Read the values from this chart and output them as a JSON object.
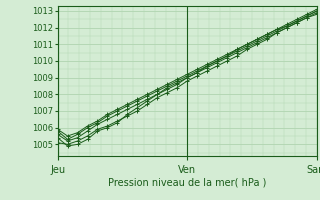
{
  "bg_color": "#d4ecd4",
  "plot_bg_color": "#d4ecd4",
  "grid_color": "#b0d4b0",
  "line_color": "#1a5c1a",
  "marker_color": "#1a5c1a",
  "xlabel": "Pression niveau de la mer( hPa )",
  "yticks": [
    1005,
    1006,
    1007,
    1008,
    1009,
    1010,
    1011,
    1012,
    1013
  ],
  "ylim": [
    1004.3,
    1013.3
  ],
  "xlim": [
    0,
    48
  ],
  "xtick_positions": [
    0,
    24,
    48
  ],
  "xtick_labels": [
    "Jeu",
    "Ven",
    "Sam"
  ],
  "series": [
    [
      1005.1,
      1005.0,
      1005.2,
      1005.5,
      1005.9,
      1006.1,
      1006.4,
      1006.7,
      1007.0,
      1007.4,
      1007.8,
      1008.1,
      1008.4,
      1008.8,
      1009.1,
      1009.4,
      1009.7,
      1010.0,
      1010.3,
      1010.7,
      1011.0,
      1011.3,
      1011.7,
      1012.0,
      1012.3,
      1012.6,
      1012.8
    ],
    [
      1005.6,
      1005.2,
      1005.4,
      1005.8,
      1006.2,
      1006.5,
      1006.8,
      1007.1,
      1007.4,
      1007.7,
      1008.0,
      1008.3,
      1008.6,
      1009.0,
      1009.3,
      1009.6,
      1009.9,
      1010.2,
      1010.5,
      1010.8,
      1011.1,
      1011.4,
      1011.7,
      1012.0,
      1012.3,
      1012.6,
      1012.9
    ],
    [
      1005.8,
      1005.3,
      1005.6,
      1006.0,
      1006.3,
      1006.7,
      1007.0,
      1007.3,
      1007.6,
      1007.9,
      1008.2,
      1008.5,
      1008.8,
      1009.1,
      1009.4,
      1009.7,
      1010.0,
      1010.3,
      1010.6,
      1010.9,
      1011.2,
      1011.5,
      1011.8,
      1012.1,
      1012.4,
      1012.7,
      1013.0
    ],
    [
      1005.4,
      1004.9,
      1005.0,
      1005.3,
      1005.8,
      1006.0,
      1006.3,
      1006.8,
      1007.2,
      1007.6,
      1008.0,
      1008.4,
      1008.7,
      1009.0,
      1009.3,
      1009.7,
      1010.0,
      1010.3,
      1010.7,
      1011.0,
      1011.3,
      1011.6,
      1011.9,
      1012.1,
      1012.4,
      1012.7,
      1013.0
    ],
    [
      1005.9,
      1005.5,
      1005.7,
      1006.1,
      1006.4,
      1006.8,
      1007.1,
      1007.4,
      1007.7,
      1008.0,
      1008.3,
      1008.6,
      1008.9,
      1009.2,
      1009.5,
      1009.8,
      1010.1,
      1010.4,
      1010.7,
      1011.0,
      1011.3,
      1011.6,
      1011.9,
      1012.2,
      1012.5,
      1012.8,
      1013.1
    ]
  ]
}
